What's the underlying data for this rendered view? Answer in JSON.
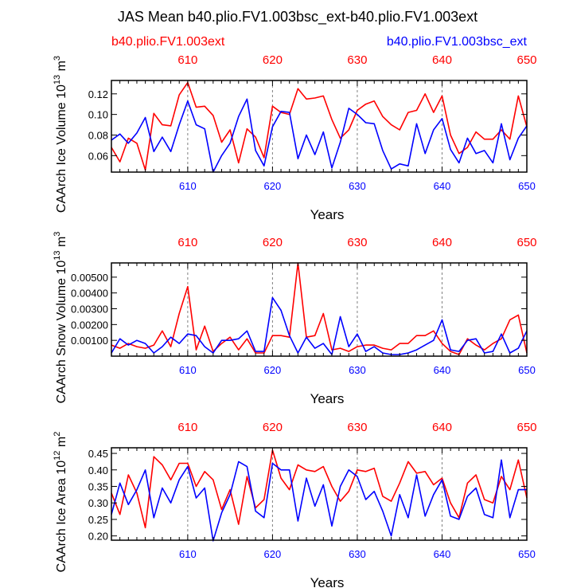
{
  "figure": {
    "title": "JAS Mean b40.plio.FV1.003bsc_ext-b40.plio.FV1.003ext",
    "legend_left": "b40.plio.FV1.003ext",
    "legend_right": "b40.plio.FV1.003bsc_ext",
    "colors": {
      "series1": "#ff0000",
      "series2": "#0000ff",
      "grid": "#808080",
      "axis": "#000000"
    }
  },
  "chart_data": [
    {
      "type": "line",
      "ylabel_main": "CAArch Ice Volume 10",
      "ylabel_exp": "13",
      "ylabel_unit": " m",
      "ylabel_unit_exp": "3",
      "xlabel": "Years",
      "xlim": [
        601,
        650
      ],
      "ylim": [
        0.044,
        0.133
      ],
      "yticks": [
        0.06,
        0.08,
        0.1,
        0.12
      ],
      "yticklabels": [
        "0.06",
        "0.08",
        "0.10",
        "0.12"
      ],
      "xticks": [
        610,
        620,
        630,
        640,
        650
      ],
      "xticklabels": [
        "610",
        "620",
        "630",
        "640",
        "650"
      ],
      "x": [
        601,
        602,
        603,
        604,
        605,
        606,
        607,
        608,
        609,
        610,
        611,
        612,
        613,
        614,
        615,
        616,
        617,
        618,
        619,
        620,
        621,
        622,
        623,
        624,
        625,
        626,
        627,
        628,
        629,
        630,
        631,
        632,
        633,
        634,
        635,
        636,
        637,
        638,
        639,
        640,
        641,
        642,
        643,
        644,
        645,
        646,
        647,
        648,
        649,
        650
      ],
      "series": [
        {
          "name": "b40.plio.FV1.003ext",
          "color": "#ff0000",
          "values": [
            0.068,
            0.054,
            0.077,
            0.072,
            0.046,
            0.101,
            0.09,
            0.089,
            0.119,
            0.131,
            0.107,
            0.108,
            0.099,
            0.073,
            0.085,
            0.053,
            0.086,
            0.078,
            0.058,
            0.108,
            0.102,
            0.1,
            0.125,
            0.115,
            0.116,
            0.118,
            0.095,
            0.077,
            0.085,
            0.104,
            0.11,
            0.113,
            0.098,
            0.09,
            0.085,
            0.102,
            0.104,
            0.12,
            0.102,
            0.118,
            0.08,
            0.062,
            0.068,
            0.083,
            0.076,
            0.076,
            0.085,
            0.076,
            0.118,
            0.088
          ]
        },
        {
          "name": "b40.plio.FV1.003bsc_ext",
          "color": "#0000ff",
          "values": [
            0.075,
            0.081,
            0.072,
            0.082,
            0.097,
            0.064,
            0.078,
            0.064,
            0.09,
            0.113,
            0.09,
            0.086,
            0.044,
            0.06,
            0.072,
            0.098,
            0.115,
            0.065,
            0.05,
            0.088,
            0.103,
            0.102,
            0.057,
            0.08,
            0.061,
            0.083,
            0.048,
            0.073,
            0.106,
            0.1,
            0.092,
            0.091,
            0.065,
            0.047,
            0.052,
            0.05,
            0.091,
            0.062,
            0.085,
            0.096,
            0.066,
            0.053,
            0.077,
            0.062,
            0.065,
            0.053,
            0.091,
            0.056,
            0.077,
            0.089
          ]
        }
      ]
    },
    {
      "type": "line",
      "ylabel_main": "CAArch Snow Volume 10",
      "ylabel_exp": "13",
      "ylabel_unit": " m",
      "ylabel_unit_exp": "3",
      "xlabel": "Years",
      "xlim": [
        601,
        650
      ],
      "ylim": [
        0.0,
        0.0059
      ],
      "yticks": [
        0.001,
        0.002,
        0.003,
        0.004,
        0.005
      ],
      "yticklabels": [
        "0.00100",
        "0.00200",
        "0.00300",
        "0.00400",
        "0.00500"
      ],
      "xticks": [
        610,
        620,
        630,
        640,
        650
      ],
      "xticklabels": [
        "610",
        "620",
        "630",
        "640",
        "650"
      ],
      "x": [
        601,
        602,
        603,
        604,
        605,
        606,
        607,
        608,
        609,
        610,
        611,
        612,
        613,
        614,
        615,
        616,
        617,
        618,
        619,
        620,
        621,
        622,
        623,
        624,
        625,
        626,
        627,
        628,
        629,
        630,
        631,
        632,
        633,
        634,
        635,
        636,
        637,
        638,
        639,
        640,
        641,
        642,
        643,
        644,
        645,
        646,
        647,
        648,
        649,
        650
      ],
      "series": [
        {
          "name": "b40.plio.FV1.003ext",
          "color": "#ff0000",
          "values": [
            0.0007,
            0.0005,
            0.0008,
            0.0006,
            0.0005,
            0.0007,
            0.0016,
            0.0006,
            0.0027,
            0.0044,
            0.0004,
            0.0019,
            0.0003,
            0.0008,
            0.0012,
            0.0004,
            0.0011,
            0.0002,
            0.0002,
            0.0013,
            0.0013,
            0.0012,
            0.0059,
            0.0012,
            0.0013,
            0.0027,
            0.0004,
            0.0005,
            0.0003,
            0.0006,
            0.0007,
            0.0007,
            0.0005,
            0.0004,
            0.0008,
            0.0008,
            0.0013,
            0.0013,
            0.0016,
            0.0008,
            0.0003,
            0.0001,
            0.0011,
            0.0007,
            0.0004,
            0.0008,
            0.0011,
            0.0023,
            0.0026,
            0.0002
          ]
        },
        {
          "name": "b40.plio.FV1.003bsc_ext",
          "color": "#0000ff",
          "values": [
            0.0002,
            0.0011,
            0.0007,
            0.001,
            0.0008,
            0.0002,
            0.0006,
            0.0012,
            0.0008,
            0.0014,
            0.0013,
            0.0006,
            0.0002,
            0.001,
            0.001,
            0.0011,
            0.0016,
            0.0003,
            0.0003,
            0.0037,
            0.0029,
            0.0013,
            0.0002,
            0.0012,
            0.0005,
            0.0008,
            0.0001,
            0.0025,
            0.0006,
            0.0014,
            0.0003,
            0.0006,
            0.0002,
            0.0001,
            0.0001,
            0.0002,
            0.0004,
            0.0007,
            0.001,
            0.0023,
            0.0004,
            0.0003,
            0.001,
            0.0011,
            0.0002,
            0.0003,
            0.0014,
            0.0002,
            0.0005,
            0.0016
          ]
        }
      ]
    },
    {
      "type": "line",
      "ylabel_main": "CAArch Ice Area 10",
      "ylabel_exp": "12",
      "ylabel_unit": " m",
      "ylabel_unit_exp": "2",
      "xlabel": "Years",
      "xlim": [
        601,
        650
      ],
      "ylim": [
        0.187,
        0.467
      ],
      "yticks": [
        0.2,
        0.25,
        0.3,
        0.35,
        0.4,
        0.45
      ],
      "yticklabels": [
        "0.20",
        "0.25",
        "0.30",
        "0.35",
        "0.40",
        "0.45"
      ],
      "xticks": [
        610,
        620,
        630,
        640,
        650
      ],
      "xticklabels": [
        "610",
        "620",
        "630",
        "640",
        "650"
      ],
      "x": [
        601,
        602,
        603,
        604,
        605,
        606,
        607,
        608,
        609,
        610,
        611,
        612,
        613,
        614,
        615,
        616,
        617,
        618,
        619,
        620,
        621,
        622,
        623,
        624,
        625,
        626,
        627,
        628,
        629,
        630,
        631,
        632,
        633,
        634,
        635,
        636,
        637,
        638,
        639,
        640,
        641,
        642,
        643,
        644,
        645,
        646,
        647,
        648,
        649,
        650
      ],
      "series": [
        {
          "name": "b40.plio.FV1.003ext",
          "color": "#ff0000",
          "values": [
            0.33,
            0.265,
            0.385,
            0.33,
            0.225,
            0.44,
            0.415,
            0.37,
            0.42,
            0.42,
            0.35,
            0.395,
            0.37,
            0.28,
            0.34,
            0.235,
            0.38,
            0.285,
            0.31,
            0.46,
            0.375,
            0.34,
            0.415,
            0.4,
            0.395,
            0.41,
            0.35,
            0.305,
            0.335,
            0.4,
            0.395,
            0.405,
            0.32,
            0.305,
            0.36,
            0.425,
            0.39,
            0.395,
            0.355,
            0.375,
            0.3,
            0.255,
            0.36,
            0.385,
            0.31,
            0.3,
            0.38,
            0.34,
            0.43,
            0.315
          ]
        },
        {
          "name": "b40.plio.FV1.003bsc_ext",
          "color": "#0000ff",
          "values": [
            0.265,
            0.36,
            0.295,
            0.34,
            0.4,
            0.255,
            0.345,
            0.3,
            0.37,
            0.41,
            0.315,
            0.345,
            0.185,
            0.27,
            0.325,
            0.425,
            0.41,
            0.275,
            0.255,
            0.42,
            0.4,
            0.4,
            0.245,
            0.375,
            0.29,
            0.355,
            0.23,
            0.35,
            0.4,
            0.38,
            0.31,
            0.335,
            0.275,
            0.2,
            0.325,
            0.255,
            0.385,
            0.26,
            0.325,
            0.37,
            0.26,
            0.25,
            0.32,
            0.345,
            0.265,
            0.255,
            0.43,
            0.255,
            0.34,
            0.34
          ]
        }
      ]
    }
  ]
}
